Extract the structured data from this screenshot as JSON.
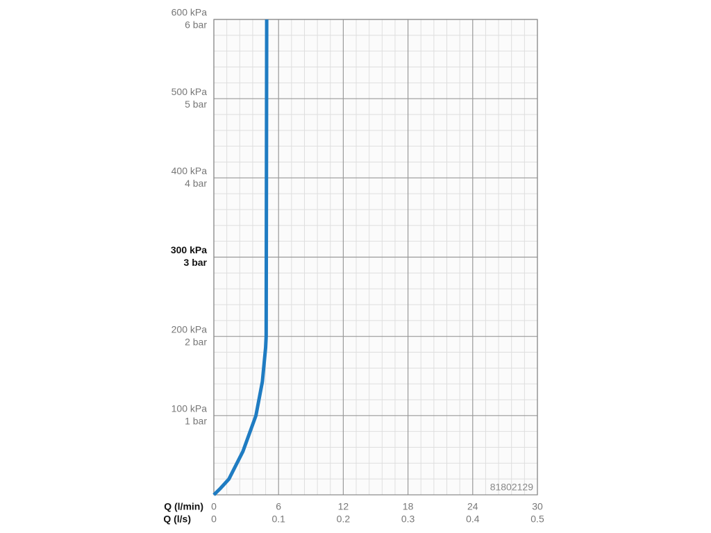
{
  "chart_data": {
    "type": "line",
    "x": [
      0,
      0.6,
      1.4,
      2.7,
      3.9,
      4.5,
      4.8,
      4.85,
      4.9
    ],
    "series": [
      {
        "color": "#1f7cc2",
        "values": [
          0,
          8,
          20,
          55,
          100,
          143,
          186,
          200,
          600
        ]
      }
    ],
    "xlim": [
      0,
      30
    ],
    "xticks": [
      0,
      6,
      12,
      18,
      24,
      30
    ],
    "x2lim": [
      0,
      0.5
    ],
    "x2ticks": [
      0,
      0.1,
      0.2,
      0.3,
      0.4,
      0.5
    ],
    "ylim": [
      0,
      600
    ],
    "yticks": [
      {
        "value": 100,
        "label": "100 kPa"
      },
      {
        "value": 200,
        "label": "200 kPa"
      },
      {
        "value": 300,
        "label": "300 kPa"
      },
      {
        "value": 400,
        "label": "400 kPa"
      },
      {
        "value": 500,
        "label": "500 kPa"
      },
      {
        "value": 600,
        "label": "600 kPa"
      }
    ],
    "y2lim": [
      0,
      6
    ],
    "y2ticks": [
      {
        "value": 1,
        "label": "1 bar"
      },
      {
        "value": 2,
        "label": "2 bar"
      },
      {
        "value": 3,
        "label": "3 bar"
      },
      {
        "value": 4,
        "label": "4 bar"
      },
      {
        "value": 5,
        "label": "5 bar"
      },
      {
        "value": 6,
        "label": "6 bar"
      }
    ],
    "emphasized_ytick": 300,
    "xlabel": "Q (l/min)",
    "x2label": "Q (l/s)",
    "annotation": "81802129",
    "grid": true
  }
}
